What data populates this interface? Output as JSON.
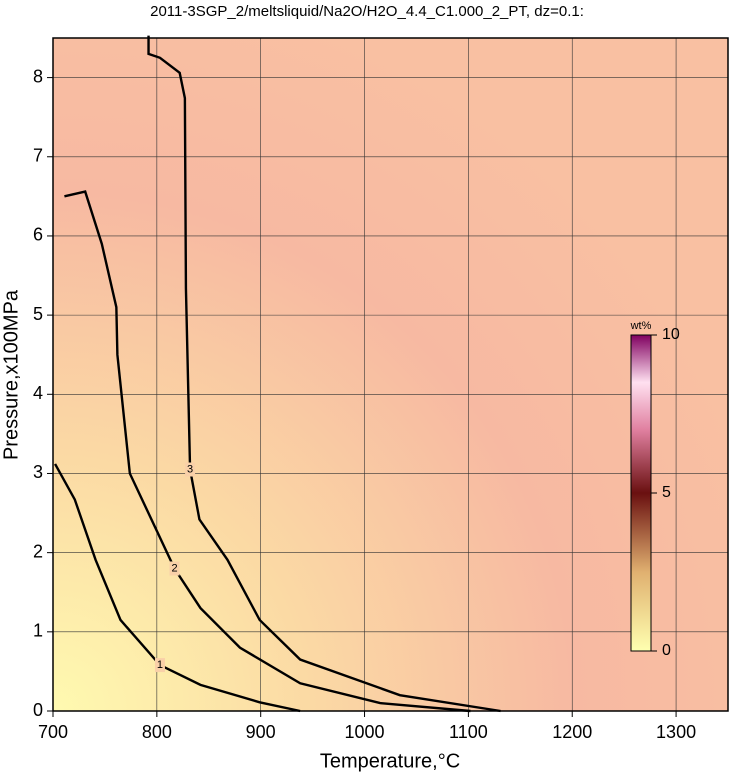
{
  "chart_data": {
    "type": "contour",
    "title": "2011-3SGP_2/meltsliquid/Na2O/H2O_4.4_C1.000_2_PT, dz=0.1:",
    "x_label": "Temperature,°C",
    "y_label": "Pressure,x100MPa",
    "xlim": [
      700,
      1350
    ],
    "ylim": [
      0,
      8.5
    ],
    "xticks": [
      700,
      800,
      900,
      1000,
      1100,
      1200,
      1300
    ],
    "yticks": [
      0,
      1,
      2,
      3,
      4,
      5,
      6,
      7,
      8
    ],
    "grid": true,
    "contours": [
      {
        "level": 1,
        "x": [
          702,
          721,
          741,
          765,
          803,
          842,
          899,
          938
        ],
        "y": [
          3.12,
          2.67,
          1.91,
          1.15,
          0.58,
          0.33,
          0.11,
          0
        ]
      },
      {
        "level": 2,
        "x": [
          711,
          731,
          747,
          761,
          762,
          774,
          817,
          842,
          880,
          938,
          1015,
          1102
        ],
        "y": [
          6.5,
          6.56,
          5.9,
          5.1,
          4.5,
          3.0,
          1.8,
          1.3,
          0.8,
          0.35,
          0.1,
          0
        ]
      },
      {
        "level": 3,
        "x": [
          792,
          792,
          803,
          822,
          827,
          828,
          832,
          841,
          868,
          899,
          938,
          1034,
          1131
        ],
        "y": [
          8.53,
          8.3,
          8.25,
          8.06,
          7.74,
          5.34,
          3.05,
          2.42,
          1.91,
          1.15,
          0.65,
          0.2,
          0
        ]
      }
    ],
    "colorbar": {
      "label": "wt%",
      "range": [
        0,
        10
      ],
      "ticks": [
        0,
        5,
        10
      ]
    }
  }
}
